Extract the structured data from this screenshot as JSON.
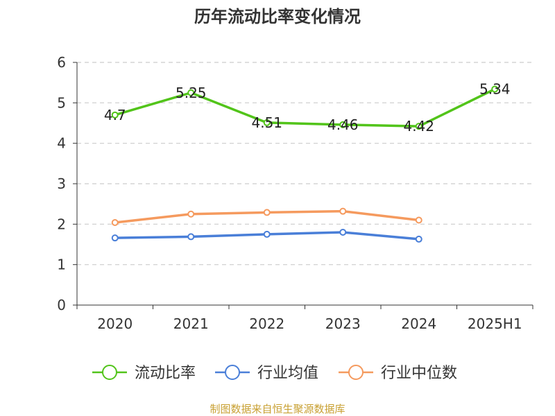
{
  "chart_data": {
    "type": "line",
    "title": "历年流动比率变化情况",
    "categories": [
      "2020",
      "2021",
      "2022",
      "2023",
      "2024",
      "2025H1"
    ],
    "ylim": [
      0,
      6
    ],
    "yticks": [
      0,
      1,
      2,
      3,
      4,
      5,
      6
    ],
    "grid": true,
    "legend_position": "bottom",
    "series": [
      {
        "name": "流动比率",
        "color": "#52c41a",
        "values": [
          4.7,
          5.25,
          4.51,
          4.46,
          4.42,
          5.34
        ],
        "labels": [
          "4.7",
          "5.25",
          "4.51",
          "4.46",
          "4.42",
          "5.34"
        ]
      },
      {
        "name": "行业均值",
        "color": "#4a7fd8",
        "values": [
          1.66,
          1.69,
          1.75,
          1.8,
          1.63,
          null
        ]
      },
      {
        "name": "行业中位数",
        "color": "#f59a5e",
        "values": [
          2.04,
          2.25,
          2.29,
          2.32,
          2.1,
          null
        ]
      }
    ]
  },
  "source_text": "制图数据来自恒生聚源数据库",
  "source_color": "#c8a032"
}
